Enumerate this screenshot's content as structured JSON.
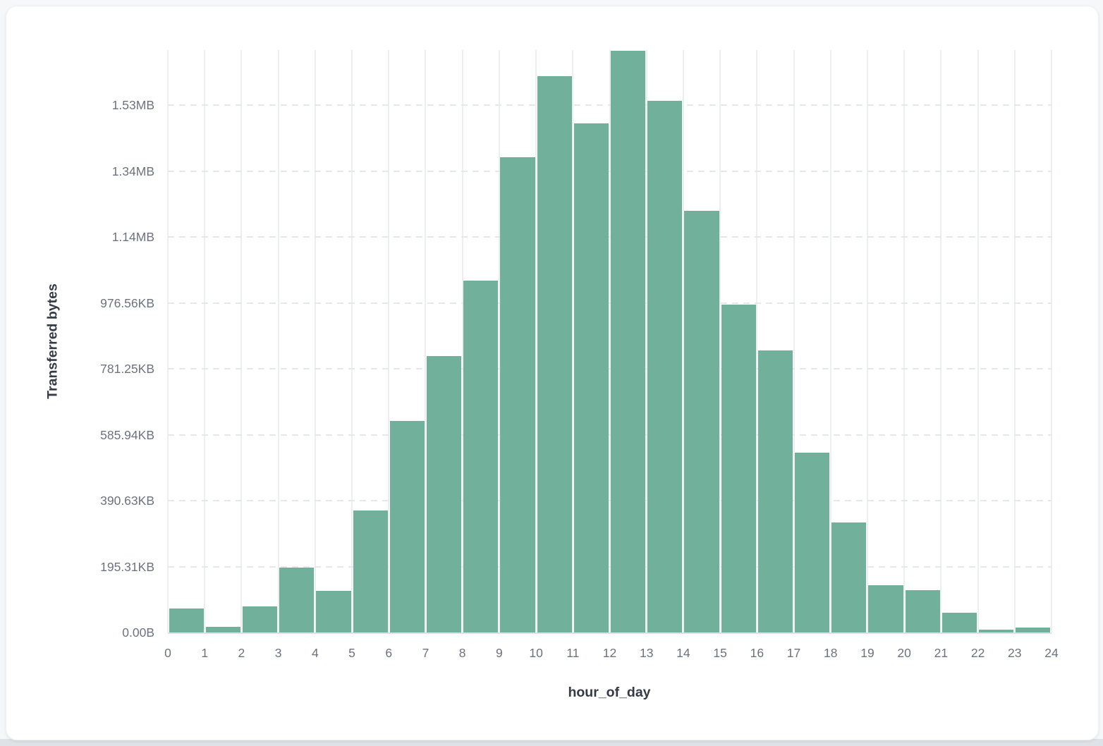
{
  "chart_data": {
    "type": "bar",
    "title": "",
    "xlabel": "hour_of_day",
    "ylabel": "Transferred bytes",
    "categories": [
      0,
      1,
      2,
      3,
      4,
      5,
      6,
      7,
      8,
      9,
      10,
      11,
      12,
      13,
      14,
      15,
      16,
      17,
      18,
      19,
      20,
      21,
      22,
      23
    ],
    "values": [
      73000,
      17000,
      79000,
      197000,
      126000,
      370000,
      642000,
      839000,
      1068000,
      1442000,
      1688000,
      1545000,
      1765000,
      1613000,
      1279000,
      995000,
      856000,
      545000,
      333000,
      143000,
      128000,
      60000,
      8000,
      15000
    ],
    "values_unit": "bytes",
    "x_tick_labels": [
      "0",
      "1",
      "2",
      "3",
      "4",
      "5",
      "6",
      "7",
      "8",
      "9",
      "10",
      "11",
      "12",
      "13",
      "14",
      "15",
      "16",
      "17",
      "18",
      "19",
      "20",
      "21",
      "22",
      "23",
      "24"
    ],
    "y_ticks": [
      {
        "label": "0.00B",
        "bytes": 0
      },
      {
        "label": "195.31KB",
        "bytes": 200000
      },
      {
        "label": "390.63KB",
        "bytes": 400000
      },
      {
        "label": "585.94KB",
        "bytes": 600000
      },
      {
        "label": "781.25KB",
        "bytes": 800000
      },
      {
        "label": "976.56KB",
        "bytes": 1000000
      },
      {
        "label": "1.14MB",
        "bytes": 1200000
      },
      {
        "label": "1.34MB",
        "bytes": 1400000
      },
      {
        "label": "1.53MB",
        "bytes": 1600000
      }
    ],
    "xlim": [
      0,
      24
    ],
    "ylim": [
      0,
      1767000
    ],
    "grid": true,
    "legend": "none",
    "colors": {
      "bar": "#71b19c",
      "bar_gap": "#ffffff",
      "h_grid": "#e4e7ec",
      "v_grid": "#eceff2",
      "baseline": "#dde0e4",
      "tick_label": "#6c727f",
      "axis_title": "#343a46",
      "card_bg": "#ffffff",
      "page_bg": "#f6f7f9",
      "page_bottom": "#dfe2e6"
    }
  }
}
